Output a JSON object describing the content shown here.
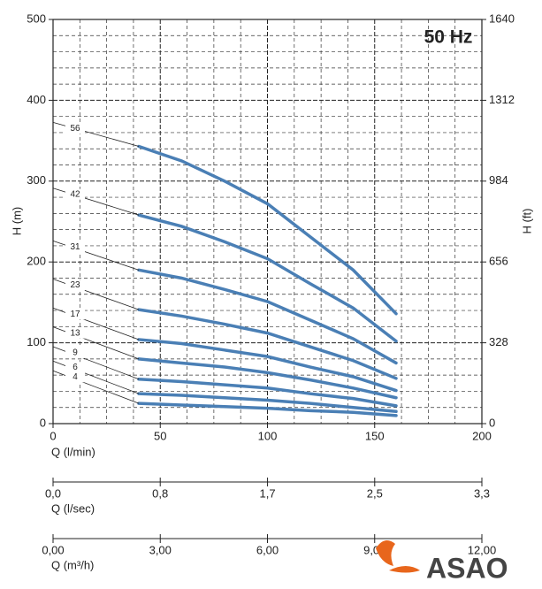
{
  "chart_data": {
    "type": "line",
    "title": "50 Hz",
    "x_label": "Q (l/min)",
    "y_label": "H (m)",
    "y2_label": "H (ft)",
    "x": [
      40,
      60,
      80,
      100,
      120,
      140,
      160
    ],
    "series": [
      {
        "name": "56",
        "color": "#4a7fb5",
        "values": [
          343,
          325,
          300,
          272,
          231,
          190,
          136
        ]
      },
      {
        "name": "42",
        "color": "#4a7fb5",
        "values": [
          258,
          244,
          225,
          204,
          173,
          143,
          102
        ]
      },
      {
        "name": "31",
        "color": "#4a7fb5",
        "values": [
          190,
          180,
          166,
          151,
          128,
          105,
          75
        ]
      },
      {
        "name": "23",
        "color": "#4a7fb5",
        "values": [
          141,
          133,
          123,
          112,
          95,
          78,
          56
        ]
      },
      {
        "name": "17",
        "color": "#4a7fb5",
        "values": [
          104,
          99,
          91,
          83,
          70,
          58,
          41
        ]
      },
      {
        "name": "13",
        "color": "#4a7fb5",
        "values": [
          80,
          75,
          70,
          63,
          54,
          44,
          32
        ]
      },
      {
        "name": "9",
        "color": "#4a7fb5",
        "values": [
          55,
          52,
          48,
          44,
          37,
          31,
          22
        ]
      },
      {
        "name": "6",
        "color": "#4a7fb5",
        "values": [
          37,
          35,
          32,
          29,
          25,
          20,
          15
        ]
      },
      {
        "name": "4",
        "color": "#4a7fb5",
        "values": [
          25,
          23,
          21,
          19,
          16,
          14,
          10
        ]
      }
    ],
    "xlim": [
      0,
      200
    ],
    "xticks": [
      0,
      50,
      100,
      150,
      200
    ],
    "ylim": [
      0,
      500
    ],
    "yticks": [
      0,
      100,
      200,
      300,
      400,
      500
    ],
    "y2lim": [
      0,
      1640
    ],
    "y2ticks": [
      0,
      328,
      656,
      984,
      1312,
      1640
    ],
    "grid": true,
    "minor_grid": true,
    "secondary_x_axes": [
      {
        "label": "Q (l/sec)",
        "lim": [
          0,
          3.333
        ],
        "ticks": [
          {
            "value": 0,
            "label": "0,0"
          },
          {
            "value": 0.833,
            "label": "0,8"
          },
          {
            "value": 1.667,
            "label": "1,7"
          },
          {
            "value": 2.5,
            "label": "2,5"
          },
          {
            "value": 3.333,
            "label": "3,3"
          }
        ]
      },
      {
        "label": "Q (m³/h)",
        "lim": [
          0,
          12
        ],
        "ticks": [
          {
            "value": 0,
            "label": "0,00"
          },
          {
            "value": 3,
            "label": "3,00"
          },
          {
            "value": 6,
            "label": "6,00"
          },
          {
            "value": 9,
            "label": "9,00"
          },
          {
            "value": 12,
            "label": "12,00"
          }
        ]
      }
    ]
  },
  "logo": "ASAO"
}
